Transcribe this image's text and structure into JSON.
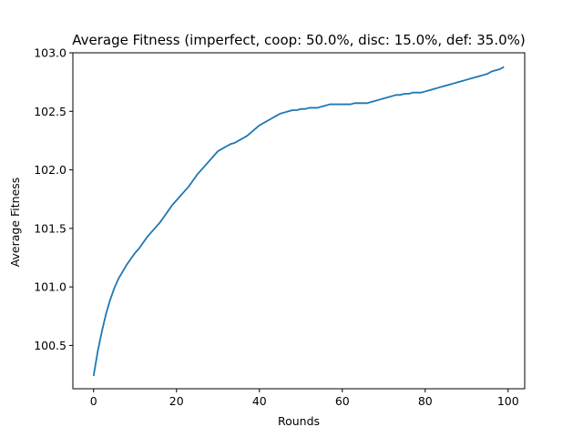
{
  "chart_data": {
    "type": "line",
    "title": "Average Fitness (imperfect, coop: 50.0%, disc: 15.0%, def: 35.0%)",
    "xlabel": "Rounds",
    "ylabel": "Average Fitness",
    "xlim": [
      -5,
      104
    ],
    "ylim": [
      100.13,
      103.0
    ],
    "xticks": [
      0,
      20,
      40,
      60,
      80,
      100
    ],
    "xtick_labels": [
      "0",
      "20",
      "40",
      "60",
      "80",
      "100"
    ],
    "yticks": [
      100.5,
      101.0,
      101.5,
      102.0,
      102.5,
      103.0
    ],
    "ytick_labels": [
      "100.5",
      "101.0",
      "101.5",
      "102.0",
      "102.5",
      "103.0"
    ],
    "grid": false,
    "line_color": "#1f77b4",
    "series": [
      {
        "x": [
          0,
          1,
          2,
          3,
          4,
          5,
          6,
          7,
          8,
          9,
          10,
          11,
          12,
          13,
          14,
          15,
          16,
          17,
          18,
          19,
          20,
          21,
          22,
          23,
          24,
          25,
          26,
          27,
          28,
          29,
          30,
          31,
          32,
          33,
          34,
          35,
          36,
          37,
          38,
          39,
          40,
          41,
          42,
          43,
          44,
          45,
          46,
          47,
          48,
          49,
          50,
          51,
          52,
          53,
          54,
          55,
          56,
          57,
          58,
          59,
          60,
          61,
          62,
          63,
          64,
          65,
          66,
          67,
          68,
          69,
          70,
          71,
          72,
          73,
          74,
          75,
          76,
          77,
          78,
          79,
          80,
          81,
          82,
          83,
          84,
          85,
          86,
          87,
          88,
          89,
          90,
          91,
          92,
          93,
          94,
          95,
          96,
          97,
          98,
          99
        ],
        "values": [
          100.24,
          100.45,
          100.62,
          100.77,
          100.89,
          100.99,
          101.07,
          101.13,
          101.19,
          101.24,
          101.29,
          101.33,
          101.38,
          101.43,
          101.47,
          101.51,
          101.55,
          101.6,
          101.65,
          101.7,
          101.74,
          101.78,
          101.82,
          101.86,
          101.91,
          101.96,
          102.0,
          102.04,
          102.08,
          102.12,
          102.16,
          102.18,
          102.2,
          102.22,
          102.23,
          102.25,
          102.27,
          102.29,
          102.32,
          102.35,
          102.38,
          102.4,
          102.42,
          102.44,
          102.46,
          102.48,
          102.49,
          102.5,
          102.51,
          102.51,
          102.52,
          102.52,
          102.53,
          102.53,
          102.53,
          102.54,
          102.55,
          102.56,
          102.56,
          102.56,
          102.56,
          102.56,
          102.56,
          102.57,
          102.57,
          102.57,
          102.57,
          102.58,
          102.59,
          102.6,
          102.61,
          102.62,
          102.63,
          102.64,
          102.64,
          102.65,
          102.65,
          102.66,
          102.66,
          102.66,
          102.67,
          102.68,
          102.69,
          102.7,
          102.71,
          102.72,
          102.73,
          102.74,
          102.75,
          102.76,
          102.77,
          102.78,
          102.79,
          102.8,
          102.81,
          102.82,
          102.84,
          102.85,
          102.86,
          102.88
        ]
      }
    ]
  }
}
